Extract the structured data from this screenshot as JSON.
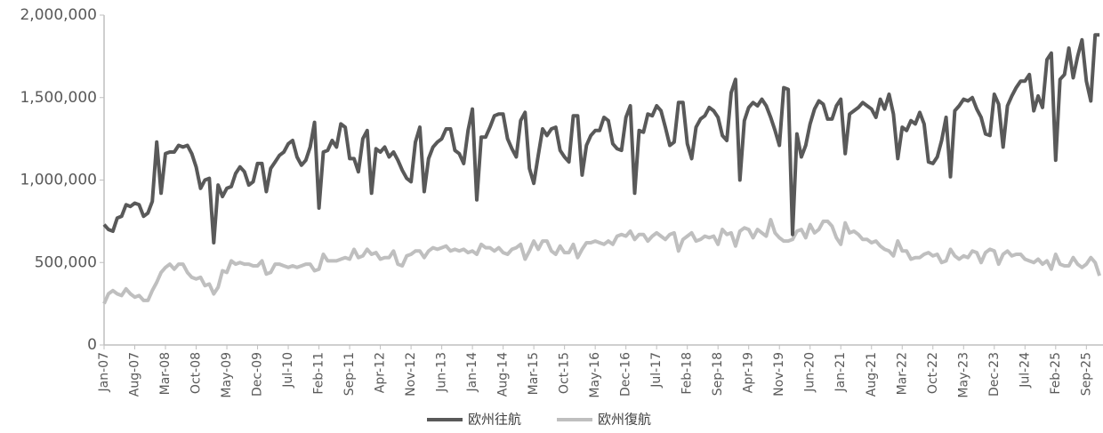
{
  "chart_data": {
    "type": "line",
    "categories": [
      "Jan-07",
      null,
      null,
      null,
      null,
      null,
      null,
      "Aug-07",
      null,
      null,
      null,
      null,
      null,
      null,
      "Mar-08",
      null,
      null,
      null,
      null,
      null,
      null,
      "Oct-08",
      null,
      null,
      null,
      null,
      null,
      null,
      "May-09",
      null,
      null,
      null,
      null,
      null,
      null,
      "Dec-09",
      null,
      null,
      null,
      null,
      null,
      null,
      "Jul-10",
      null,
      null,
      null,
      null,
      null,
      null,
      "Feb-11",
      null,
      null,
      null,
      null,
      null,
      null,
      "Sep-11",
      null,
      null,
      null,
      null,
      null,
      null,
      "Apr-12",
      null,
      null,
      null,
      null,
      null,
      null,
      "Nov-12",
      null,
      null,
      null,
      null,
      null,
      null,
      "Jun-13",
      null,
      null,
      null,
      null,
      null,
      null,
      "Jan-14",
      null,
      null,
      null,
      null,
      null,
      null,
      "Aug-14",
      null,
      null,
      null,
      null,
      null,
      null,
      "Mar-15",
      null,
      null,
      null,
      null,
      null,
      null,
      "Oct-15",
      null,
      null,
      null,
      null,
      null,
      null,
      "May-16",
      null,
      null,
      null,
      null,
      null,
      null,
      "Dec-16",
      null,
      null,
      null,
      null,
      null,
      null,
      "Jul-17",
      null,
      null,
      null,
      null,
      null,
      null,
      "Feb-18",
      null,
      null,
      null,
      null,
      null,
      null,
      "Sep-18",
      null,
      null,
      null,
      null,
      null,
      null,
      "Apr-19",
      null,
      null,
      null,
      null,
      null,
      null,
      "Nov-19",
      null,
      null,
      null,
      null,
      null,
      null,
      "Jun-20",
      null,
      null,
      null,
      null,
      null,
      null,
      "Jan-21",
      null,
      null,
      null,
      null,
      null,
      null,
      "Aug-21",
      null,
      null,
      null,
      null,
      null,
      null,
      "Mar-22",
      null,
      null,
      null,
      null,
      null,
      null,
      "Oct-22",
      null,
      null,
      null,
      null,
      null,
      null,
      "May-23",
      null,
      null,
      null,
      null,
      null,
      null,
      "Dec-23",
      null,
      null,
      null,
      null,
      null,
      null,
      "Jul-24",
      null,
      null,
      null,
      null,
      null,
      null,
      "Feb-25",
      null,
      null,
      null,
      null,
      null,
      null,
      "Sep-25",
      null,
      null,
      null
    ],
    "series": [
      {
        "name": "欧州往航",
        "color": "#595959",
        "values": [
          730000,
          700000,
          690000,
          770000,
          780000,
          850000,
          840000,
          860000,
          850000,
          780000,
          800000,
          870000,
          1230000,
          920000,
          1160000,
          1170000,
          1170000,
          1210000,
          1200000,
          1210000,
          1160000,
          1080000,
          950000,
          1000000,
          1010000,
          620000,
          970000,
          900000,
          950000,
          960000,
          1040000,
          1080000,
          1050000,
          970000,
          990000,
          1100000,
          1100000,
          930000,
          1070000,
          1110000,
          1150000,
          1170000,
          1220000,
          1240000,
          1140000,
          1090000,
          1120000,
          1200000,
          1350000,
          830000,
          1170000,
          1180000,
          1240000,
          1200000,
          1340000,
          1320000,
          1130000,
          1130000,
          1050000,
          1250000,
          1300000,
          920000,
          1190000,
          1170000,
          1200000,
          1140000,
          1170000,
          1120000,
          1060000,
          1010000,
          990000,
          1230000,
          1320000,
          930000,
          1130000,
          1200000,
          1230000,
          1250000,
          1310000,
          1310000,
          1180000,
          1160000,
          1100000,
          1300000,
          1430000,
          880000,
          1260000,
          1260000,
          1320000,
          1390000,
          1400000,
          1400000,
          1250000,
          1190000,
          1140000,
          1360000,
          1410000,
          1070000,
          980000,
          1150000,
          1310000,
          1270000,
          1310000,
          1320000,
          1180000,
          1140000,
          1110000,
          1390000,
          1390000,
          1030000,
          1210000,
          1270000,
          1300000,
          1300000,
          1380000,
          1360000,
          1220000,
          1190000,
          1180000,
          1380000,
          1450000,
          920000,
          1300000,
          1290000,
          1400000,
          1390000,
          1450000,
          1420000,
          1320000,
          1210000,
          1230000,
          1470000,
          1470000,
          1220000,
          1130000,
          1320000,
          1370000,
          1390000,
          1440000,
          1420000,
          1380000,
          1270000,
          1240000,
          1530000,
          1610000,
          1000000,
          1360000,
          1440000,
          1470000,
          1450000,
          1490000,
          1450000,
          1380000,
          1300000,
          1210000,
          1560000,
          1550000,
          670000,
          1280000,
          1140000,
          1210000,
          1340000,
          1430000,
          1480000,
          1460000,
          1370000,
          1370000,
          1450000,
          1490000,
          1160000,
          1400000,
          1420000,
          1440000,
          1470000,
          1450000,
          1430000,
          1380000,
          1490000,
          1430000,
          1520000,
          1400000,
          1130000,
          1320000,
          1300000,
          1360000,
          1340000,
          1410000,
          1340000,
          1110000,
          1100000,
          1140000,
          1240000,
          1380000,
          1020000,
          1420000,
          1450000,
          1490000,
          1480000,
          1500000,
          1430000,
          1380000,
          1280000,
          1270000,
          1520000,
          1460000,
          1200000,
          1450000,
          1510000,
          1560000,
          1600000,
          1600000,
          1640000,
          1420000,
          1510000,
          1440000,
          1730000,
          1770000,
          1120000,
          1610000,
          1640000,
          1800000,
          1620000,
          1750000,
          1850000,
          1600000,
          1480000,
          1880000,
          1880000
        ]
      },
      {
        "name": "欧州復航",
        "color": "#bfbfbf",
        "values": [
          250000,
          310000,
          330000,
          310000,
          300000,
          340000,
          310000,
          290000,
          300000,
          270000,
          270000,
          330000,
          380000,
          440000,
          470000,
          490000,
          460000,
          490000,
          490000,
          440000,
          410000,
          400000,
          410000,
          360000,
          370000,
          310000,
          350000,
          450000,
          440000,
          510000,
          490000,
          500000,
          490000,
          490000,
          480000,
          480000,
          510000,
          430000,
          440000,
          490000,
          490000,
          480000,
          470000,
          480000,
          470000,
          480000,
          490000,
          490000,
          450000,
          460000,
          550000,
          510000,
          510000,
          510000,
          520000,
          530000,
          520000,
          580000,
          530000,
          540000,
          580000,
          550000,
          560000,
          520000,
          530000,
          530000,
          570000,
          490000,
          480000,
          540000,
          550000,
          570000,
          570000,
          530000,
          570000,
          590000,
          580000,
          590000,
          600000,
          570000,
          580000,
          570000,
          580000,
          560000,
          570000,
          550000,
          610000,
          590000,
          590000,
          570000,
          590000,
          560000,
          550000,
          580000,
          590000,
          610000,
          520000,
          570000,
          630000,
          580000,
          630000,
          630000,
          570000,
          550000,
          600000,
          560000,
          560000,
          610000,
          530000,
          580000,
          620000,
          620000,
          630000,
          620000,
          610000,
          630000,
          610000,
          660000,
          670000,
          660000,
          690000,
          640000,
          670000,
          670000,
          630000,
          660000,
          680000,
          660000,
          640000,
          670000,
          680000,
          570000,
          640000,
          660000,
          680000,
          630000,
          640000,
          660000,
          650000,
          660000,
          610000,
          700000,
          670000,
          680000,
          600000,
          690000,
          710000,
          700000,
          650000,
          700000,
          680000,
          660000,
          760000,
          680000,
          650000,
          630000,
          630000,
          640000,
          690000,
          700000,
          650000,
          730000,
          680000,
          700000,
          750000,
          750000,
          720000,
          650000,
          610000,
          740000,
          680000,
          690000,
          670000,
          640000,
          640000,
          620000,
          630000,
          600000,
          580000,
          570000,
          540000,
          630000,
          570000,
          570000,
          520000,
          530000,
          530000,
          550000,
          560000,
          540000,
          550000,
          500000,
          510000,
          580000,
          540000,
          520000,
          540000,
          530000,
          570000,
          560000,
          500000,
          560000,
          580000,
          570000,
          490000,
          550000,
          570000,
          540000,
          550000,
          550000,
          520000,
          510000,
          500000,
          520000,
          490000,
          510000,
          460000,
          550000,
          490000,
          480000,
          480000,
          530000,
          490000,
          470000,
          490000,
          530000,
          500000,
          420000
        ]
      }
    ],
    "ylim": [
      0,
      2000000
    ],
    "yticks": [
      0,
      {
        "value": 500000,
        "label": "500,000"
      },
      {
        "value": 1000000,
        "label": "1,000,000"
      },
      {
        "value": 1500000,
        "label": "1,500,000"
      },
      {
        "value": 2000000,
        "label": "2,000,000"
      }
    ],
    "grid": false,
    "legend": "bottom"
  }
}
